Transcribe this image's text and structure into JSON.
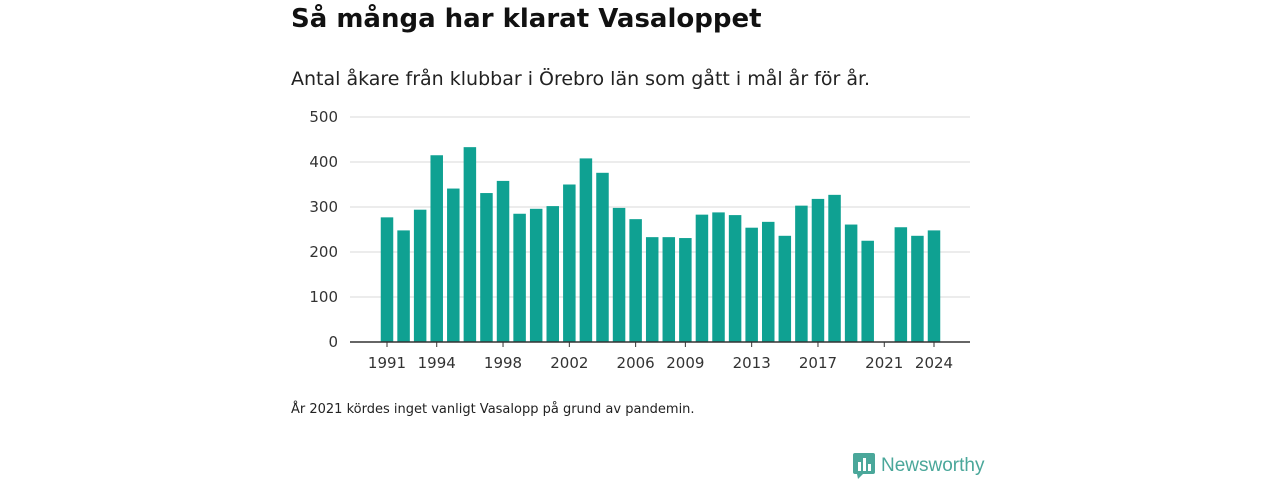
{
  "header": {
    "title": "Så många har klarat Vasaloppet",
    "subtitle": "Antal åkare från klubbar i Örebro län som gått i mål år för år."
  },
  "footnote": "År 2021 kördes inget vanligt Vasalopp på grund av pandemin.",
  "brand": {
    "name": "Newsworthy",
    "icon": "newsworthy-logo-icon"
  },
  "colors": {
    "bar": "#0fa192",
    "grid": "#d9d9d9",
    "axis": "#333333",
    "brand": "#4aa79a"
  },
  "chart_data": {
    "type": "bar",
    "title": "Så många har klarat Vasaloppet",
    "subtitle": "Antal åkare från klubbar i Örebro län som gått i mål år för år.",
    "xlabel": "",
    "ylabel": "",
    "categories": [
      1991,
      1992,
      1993,
      1994,
      1995,
      1996,
      1997,
      1998,
      1999,
      2000,
      2001,
      2002,
      2003,
      2004,
      2005,
      2006,
      2007,
      2008,
      2009,
      2010,
      2011,
      2012,
      2013,
      2014,
      2015,
      2016,
      2017,
      2018,
      2019,
      2020,
      2021,
      2022,
      2023,
      2024
    ],
    "values": [
      277,
      248,
      294,
      415,
      341,
      433,
      331,
      358,
      285,
      296,
      302,
      350,
      408,
      376,
      298,
      273,
      233,
      233,
      231,
      283,
      288,
      282,
      254,
      267,
      236,
      303,
      318,
      327,
      261,
      225,
      0,
      255,
      236,
      248
    ],
    "x_tick_labels": [
      "1991",
      "1994",
      "1998",
      "2002",
      "2006",
      "2009",
      "2013",
      "2017",
      "2021",
      "2024"
    ],
    "y_ticks": [
      0,
      100,
      200,
      300,
      400,
      500
    ],
    "ylim": [
      0,
      500
    ],
    "grid": true,
    "legend": "none"
  }
}
